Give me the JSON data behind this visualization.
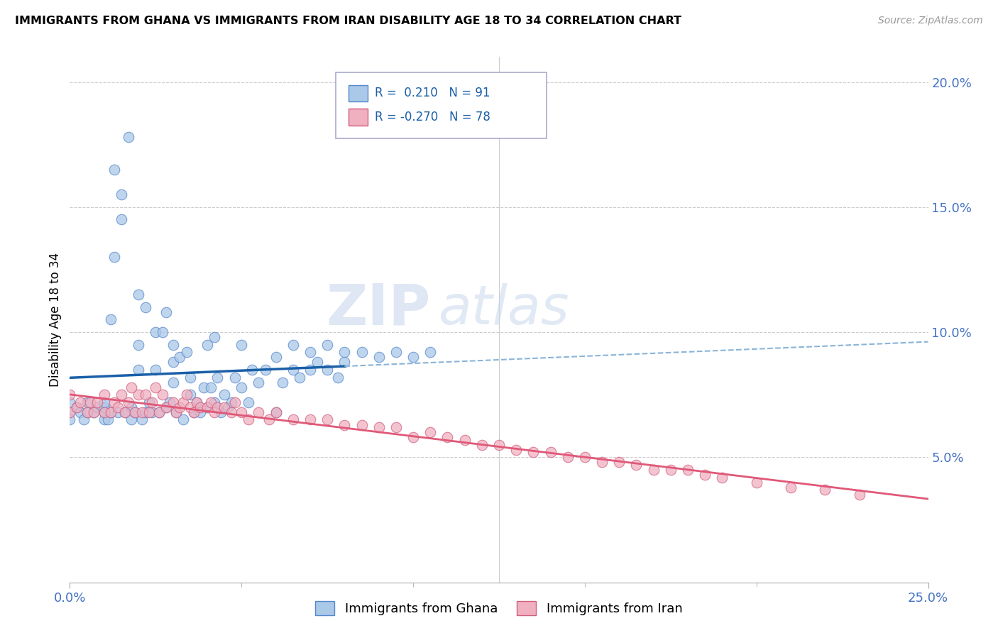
{
  "title": "IMMIGRANTS FROM GHANA VS IMMIGRANTS FROM IRAN DISABILITY AGE 18 TO 34 CORRELATION CHART",
  "source": "Source: ZipAtlas.com",
  "ylabel": "Disability Age 18 to 34",
  "xmin": 0.0,
  "xmax": 0.25,
  "ymin": 0.0,
  "ymax": 0.21,
  "ghana_color": "#aac8e8",
  "ghana_edge_color": "#5588cc",
  "iran_color": "#f0b0c0",
  "iran_edge_color": "#d06080",
  "ghana_line_color": "#1a5fa8",
  "iran_line_color": "#e05878",
  "ghana_dashed_color": "#8ab4d8",
  "ghana_R": 0.21,
  "ghana_N": 91,
  "iran_R": -0.27,
  "iran_N": 78,
  "legend_label_ghana": "Immigrants from Ghana",
  "legend_label_iran": "Immigrants from Iran",
  "right_yticks": [
    0.05,
    0.1,
    0.15,
    0.2
  ],
  "right_yticklabels": [
    "5.0%",
    "10.0%",
    "15.0%",
    "20.0%"
  ],
  "ghana_x": [
    0.0,
    0.0,
    0.0,
    0.002,
    0.003,
    0.004,
    0.005,
    0.005,
    0.007,
    0.008,
    0.01,
    0.01,
    0.01,
    0.01,
    0.011,
    0.012,
    0.013,
    0.013,
    0.014,
    0.015,
    0.015,
    0.016,
    0.017,
    0.018,
    0.018,
    0.019,
    0.02,
    0.02,
    0.021,
    0.022,
    0.023,
    0.024,
    0.025,
    0.025,
    0.026,
    0.027,
    0.028,
    0.029,
    0.03,
    0.03,
    0.031,
    0.032,
    0.033,
    0.034,
    0.035,
    0.035,
    0.036,
    0.037,
    0.038,
    0.039,
    0.04,
    0.041,
    0.042,
    0.043,
    0.044,
    0.045,
    0.046,
    0.047,
    0.048,
    0.05,
    0.052,
    0.053,
    0.055,
    0.057,
    0.06,
    0.06,
    0.062,
    0.065,
    0.067,
    0.07,
    0.072,
    0.075,
    0.078,
    0.08,
    0.012,
    0.02,
    0.022,
    0.028,
    0.03,
    0.04,
    0.042,
    0.05,
    0.065,
    0.07,
    0.075,
    0.08,
    0.085,
    0.09,
    0.095,
    0.1,
    0.105
  ],
  "ghana_y": [
    0.068,
    0.065,
    0.072,
    0.07,
    0.068,
    0.065,
    0.072,
    0.068,
    0.068,
    0.07,
    0.065,
    0.068,
    0.07,
    0.072,
    0.065,
    0.068,
    0.165,
    0.13,
    0.068,
    0.145,
    0.155,
    0.068,
    0.178,
    0.07,
    0.065,
    0.068,
    0.085,
    0.095,
    0.065,
    0.068,
    0.072,
    0.068,
    0.1,
    0.085,
    0.068,
    0.1,
    0.07,
    0.072,
    0.08,
    0.088,
    0.068,
    0.09,
    0.065,
    0.092,
    0.075,
    0.082,
    0.068,
    0.072,
    0.068,
    0.078,
    0.07,
    0.078,
    0.072,
    0.082,
    0.068,
    0.075,
    0.07,
    0.072,
    0.082,
    0.078,
    0.072,
    0.085,
    0.08,
    0.085,
    0.068,
    0.09,
    0.08,
    0.085,
    0.082,
    0.085,
    0.088,
    0.085,
    0.082,
    0.088,
    0.105,
    0.115,
    0.11,
    0.108,
    0.095,
    0.095,
    0.098,
    0.095,
    0.095,
    0.092,
    0.095,
    0.092,
    0.092,
    0.09,
    0.092,
    0.09,
    0.092
  ],
  "iran_x": [
    0.0,
    0.0,
    0.002,
    0.003,
    0.005,
    0.006,
    0.007,
    0.008,
    0.01,
    0.01,
    0.012,
    0.013,
    0.014,
    0.015,
    0.016,
    0.017,
    0.018,
    0.019,
    0.02,
    0.021,
    0.022,
    0.023,
    0.024,
    0.025,
    0.026,
    0.027,
    0.028,
    0.03,
    0.031,
    0.032,
    0.033,
    0.034,
    0.035,
    0.036,
    0.037,
    0.038,
    0.04,
    0.041,
    0.042,
    0.043,
    0.045,
    0.047,
    0.048,
    0.05,
    0.052,
    0.055,
    0.058,
    0.06,
    0.065,
    0.07,
    0.075,
    0.08,
    0.085,
    0.09,
    0.095,
    0.1,
    0.105,
    0.11,
    0.115,
    0.12,
    0.125,
    0.13,
    0.135,
    0.14,
    0.145,
    0.15,
    0.155,
    0.16,
    0.165,
    0.17,
    0.175,
    0.18,
    0.185,
    0.19,
    0.2,
    0.21,
    0.22,
    0.23
  ],
  "iran_y": [
    0.068,
    0.075,
    0.07,
    0.072,
    0.068,
    0.072,
    0.068,
    0.072,
    0.068,
    0.075,
    0.068,
    0.072,
    0.07,
    0.075,
    0.068,
    0.072,
    0.078,
    0.068,
    0.075,
    0.068,
    0.075,
    0.068,
    0.072,
    0.078,
    0.068,
    0.075,
    0.07,
    0.072,
    0.068,
    0.07,
    0.072,
    0.075,
    0.07,
    0.068,
    0.072,
    0.07,
    0.07,
    0.072,
    0.068,
    0.07,
    0.07,
    0.068,
    0.072,
    0.068,
    0.065,
    0.068,
    0.065,
    0.068,
    0.065,
    0.065,
    0.065,
    0.063,
    0.063,
    0.062,
    0.062,
    0.058,
    0.06,
    0.058,
    0.057,
    0.055,
    0.055,
    0.053,
    0.052,
    0.052,
    0.05,
    0.05,
    0.048,
    0.048,
    0.047,
    0.045,
    0.045,
    0.045,
    0.043,
    0.042,
    0.04,
    0.038,
    0.037,
    0.035
  ]
}
